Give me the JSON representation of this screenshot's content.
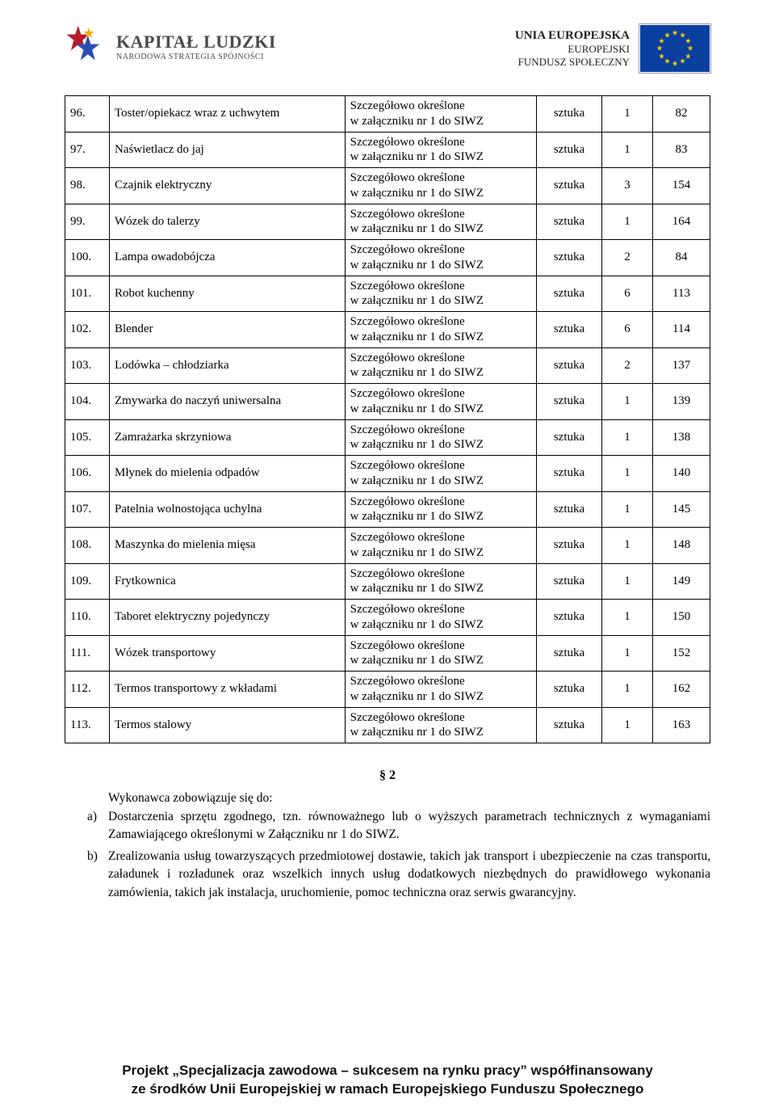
{
  "header": {
    "kl_line1": "KAPITAŁ LUDZKI",
    "kl_line2": "NARODOWA STRATEGIA SPÓJNOŚCI",
    "ue_line1": "UNIA EUROPEJSKA",
    "ue_line2": "EUROPEJSKI",
    "ue_line3": "FUNDUSZ SPOŁECZNY"
  },
  "table": {
    "desc_template_line1": "Szczegółowo określone",
    "desc_template_line2": "w załączniku nr 1 do SIWZ",
    "unit_label": "sztuka",
    "rows": [
      {
        "idx": "96.",
        "name": "Toster/opiekacz wraz z uchwytem",
        "qty": "1",
        "page": "82"
      },
      {
        "idx": "97.",
        "name": "Naświetlacz do jaj",
        "qty": "1",
        "page": "83"
      },
      {
        "idx": "98.",
        "name": "Czajnik elektryczny",
        "qty": "3",
        "page": "154"
      },
      {
        "idx": "99.",
        "name": "Wózek do talerzy",
        "qty": "1",
        "page": "164"
      },
      {
        "idx": "100.",
        "name": "Lampa owadobójcza",
        "qty": "2",
        "page": "84"
      },
      {
        "idx": "101.",
        "name": "Robot kuchenny",
        "qty": "6",
        "page": "113"
      },
      {
        "idx": "102.",
        "name": "Blender",
        "qty": "6",
        "page": "114"
      },
      {
        "idx": "103.",
        "name": "Lodówka – chłodziarka",
        "qty": "2",
        "page": "137"
      },
      {
        "idx": "104.",
        "name": "Zmywarka do naczyń uniwersalna",
        "qty": "1",
        "page": "139"
      },
      {
        "idx": "105.",
        "name": "Zamrażarka skrzyniowa",
        "qty": "1",
        "page": "138"
      },
      {
        "idx": "106.",
        "name": "Młynek do mielenia odpadów",
        "qty": "1",
        "page": "140"
      },
      {
        "idx": "107.",
        "name": "Patelnia wolnostojąca uchylna",
        "qty": "1",
        "page": "145"
      },
      {
        "idx": "108.",
        "name": "Maszynka do mielenia mięsa",
        "qty": "1",
        "page": "148"
      },
      {
        "idx": "109.",
        "name": "Frytkownica",
        "qty": "1",
        "page": "149"
      },
      {
        "idx": "110.",
        "name": "Taboret elektryczny pojedynczy",
        "qty": "1",
        "page": "150"
      },
      {
        "idx": "111.",
        "name": "Wózek transportowy",
        "qty": "1",
        "page": "152"
      },
      {
        "idx": "112.",
        "name": "Termos transportowy z wkładami",
        "qty": "1",
        "page": "162"
      },
      {
        "idx": "113.",
        "name": "Termos stalowy",
        "qty": "1",
        "page": "163"
      }
    ]
  },
  "section": {
    "number": "§ 2",
    "intro": "Wykonawca zobowiązuje się do:",
    "items": [
      {
        "marker": "a)",
        "text": "Dostarczenia sprzętu zgodnego, tzn. równoważnego lub o wyższych parametrach technicznych z wymaganiami Zamawiającego określonymi w Załączniku nr 1 do SIWZ."
      },
      {
        "marker": "b)",
        "text": "Zrealizowania usług towarzyszących przedmiotowej dostawie, takich jak transport i ubezpieczenie na czas transportu, załadunek i rozładunek oraz wszelkich innych usług dodatkowych niezbędnych do prawidłowego wykonania zamówienia, takich jak instalacja, uruchomienie, pomoc techniczna oraz serwis gwarancyjny."
      }
    ]
  },
  "footer": {
    "line1": "Projekt „Specjalizacja zawodowa – sukcesem na rynku pracy” współfinansowany",
    "line2": "ze środków Unii Europejskiej w ramach Europejskiego Funduszu Społecznego"
  },
  "colors": {
    "kl_red": "#b71d2b",
    "kl_blue": "#2a4fb0",
    "kl_yellow": "#f0b000",
    "eu_blue": "#0a3fa0",
    "eu_yellow": "#ffd400",
    "text": "#000000",
    "grey": "#4a4a4a"
  }
}
